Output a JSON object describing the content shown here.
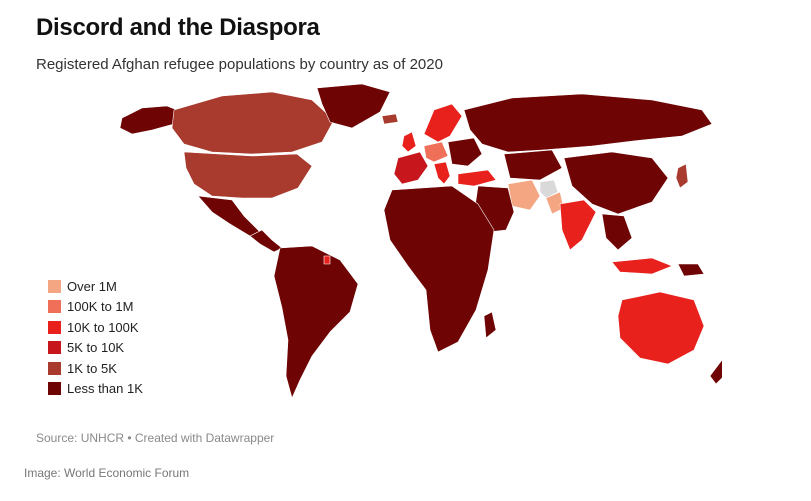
{
  "header": {
    "title": "Discord and the Diaspora",
    "subtitle": "Registered Afghan refugee populations by country as of 2020"
  },
  "legend": {
    "items": [
      {
        "label": "Over 1M",
        "color": "#f4a582"
      },
      {
        "label": "100K to 1M",
        "color": "#ef6f58"
      },
      {
        "label": "10K to 100K",
        "color": "#e8211d"
      },
      {
        "label": "5K to 10K",
        "color": "#c8161d"
      },
      {
        "label": "1K to 5K",
        "color": "#a83a2e"
      },
      {
        "label": "Less than 1K",
        "color": "#6e0404"
      }
    ]
  },
  "map": {
    "colors": {
      "less_than_1k": "#6e0404",
      "k1_to_5k": "#a83a2e",
      "k5_to_10k": "#c8161d",
      "k10_to_100k": "#e8211d",
      "k100k_to_1m": "#ef6f58",
      "over_1m": "#f4a582",
      "no_data": "#d9d9d9"
    }
  },
  "footer": {
    "source": "Source: UNHCR • Created with Datawrapper",
    "credit": "Image: World Economic Forum"
  }
}
